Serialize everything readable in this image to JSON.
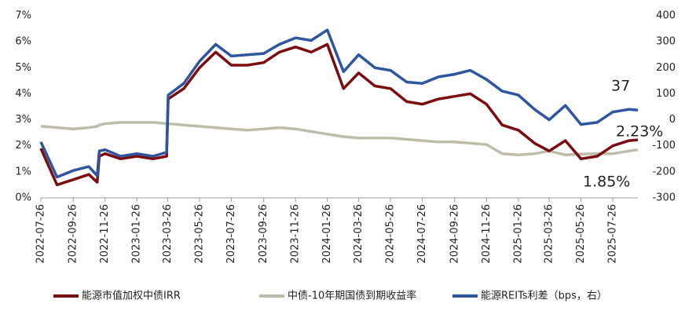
{
  "chart_data": {
    "type": "line",
    "x": [
      "2022-07-26",
      "2022-08-26",
      "2022-09-26",
      "2022-10-26",
      "2022-11-11",
      "2022-11-15",
      "2022-11-26",
      "2022-12-26",
      "2023-01-26",
      "2023-02-26",
      "2023-03-24",
      "2023-03-27",
      "2023-04-26",
      "2023-05-26",
      "2023-06-26",
      "2023-07-26",
      "2023-08-26",
      "2023-09-26",
      "2023-10-26",
      "2023-11-26",
      "2023-12-26",
      "2024-01-26",
      "2024-02-26",
      "2024-03-26",
      "2024-04-26",
      "2024-05-26",
      "2024-06-26",
      "2024-07-26",
      "2024-08-26",
      "2024-09-26",
      "2024-10-26",
      "2024-11-26",
      "2024-12-26",
      "2025-01-26",
      "2025-02-26",
      "2025-03-26",
      "2025-04-26",
      "2025-05-26",
      "2025-06-26",
      "2025-07-26",
      "2025-08-26",
      "2025-09-12"
    ],
    "series": [
      {
        "name": "能源市值加权中债IRR",
        "color": "#7b0c10",
        "values": [
          1.9,
          0.5,
          0.7,
          0.9,
          0.6,
          1.6,
          1.7,
          1.5,
          1.6,
          1.5,
          1.6,
          3.8,
          4.2,
          5.0,
          5.6,
          5.1,
          5.1,
          5.2,
          5.6,
          5.8,
          5.6,
          5.9,
          4.2,
          4.8,
          4.3,
          4.2,
          3.7,
          3.6,
          3.8,
          3.9,
          4.0,
          3.6,
          2.8,
          2.6,
          2.1,
          1.8,
          2.2,
          1.5,
          1.6,
          2.0,
          2.2,
          2.23
        ]
      },
      {
        "name": "中债-10年期国债到期收益率",
        "color": "#bfbcaa",
        "values": [
          2.75,
          2.7,
          2.65,
          2.7,
          2.75,
          2.8,
          2.85,
          2.9,
          2.9,
          2.9,
          2.85,
          2.85,
          2.8,
          2.75,
          2.7,
          2.65,
          2.6,
          2.65,
          2.7,
          2.65,
          2.55,
          2.45,
          2.35,
          2.3,
          2.3,
          2.3,
          2.25,
          2.2,
          2.15,
          2.15,
          2.1,
          2.05,
          1.7,
          1.65,
          1.7,
          1.8,
          1.65,
          1.68,
          1.7,
          1.7,
          1.8,
          1.85
        ]
      },
      {
        "name": "能源REITs利差（bps，右）",
        "color": "#2e55a0",
        "axis": "y2",
        "values": [
          -85,
          -220,
          -195,
          -180,
          -215,
          -120,
          -115,
          -140,
          -130,
          -140,
          -125,
          95,
          140,
          225,
          290,
          245,
          250,
          255,
          290,
          315,
          305,
          345,
          185,
          250,
          200,
          190,
          145,
          140,
          165,
          175,
          190,
          155,
          110,
          95,
          40,
          0,
          55,
          -18,
          -10,
          30,
          40,
          37
        ]
      }
    ],
    "xlim": [
      "2022-07-26",
      "2025-09-12"
    ],
    "xticks": [
      "2022-07-26",
      "2022-09-26",
      "2022-11-26",
      "2023-01-26",
      "2023-03-26",
      "2023-05-26",
      "2023-07-26",
      "2023-09-26",
      "2023-11-26",
      "2024-01-26",
      "2024-03-26",
      "2024-05-26",
      "2024-07-26",
      "2024-09-26",
      "2024-11-26",
      "2025-01-26",
      "2025-03-26",
      "2025-05-26",
      "2025-07-26"
    ],
    "ylim": [
      0,
      7
    ],
    "yticks": [
      {
        "value": 0,
        "label": "0%"
      },
      {
        "value": 1,
        "label": "1%"
      },
      {
        "value": 2,
        "label": "2%"
      },
      {
        "value": 3,
        "label": "3%"
      },
      {
        "value": 4,
        "label": "4%"
      },
      {
        "value": 5,
        "label": "5%"
      },
      {
        "value": 6,
        "label": "6%"
      },
      {
        "value": 7,
        "label": "7%"
      }
    ],
    "y2lim": [
      -300,
      400
    ],
    "y2ticks": [
      -300,
      -200,
      -100,
      0,
      100,
      200,
      300,
      400
    ],
    "annotations": [
      "37",
      "2.23%",
      "1.85%"
    ],
    "legend": "bottom"
  }
}
